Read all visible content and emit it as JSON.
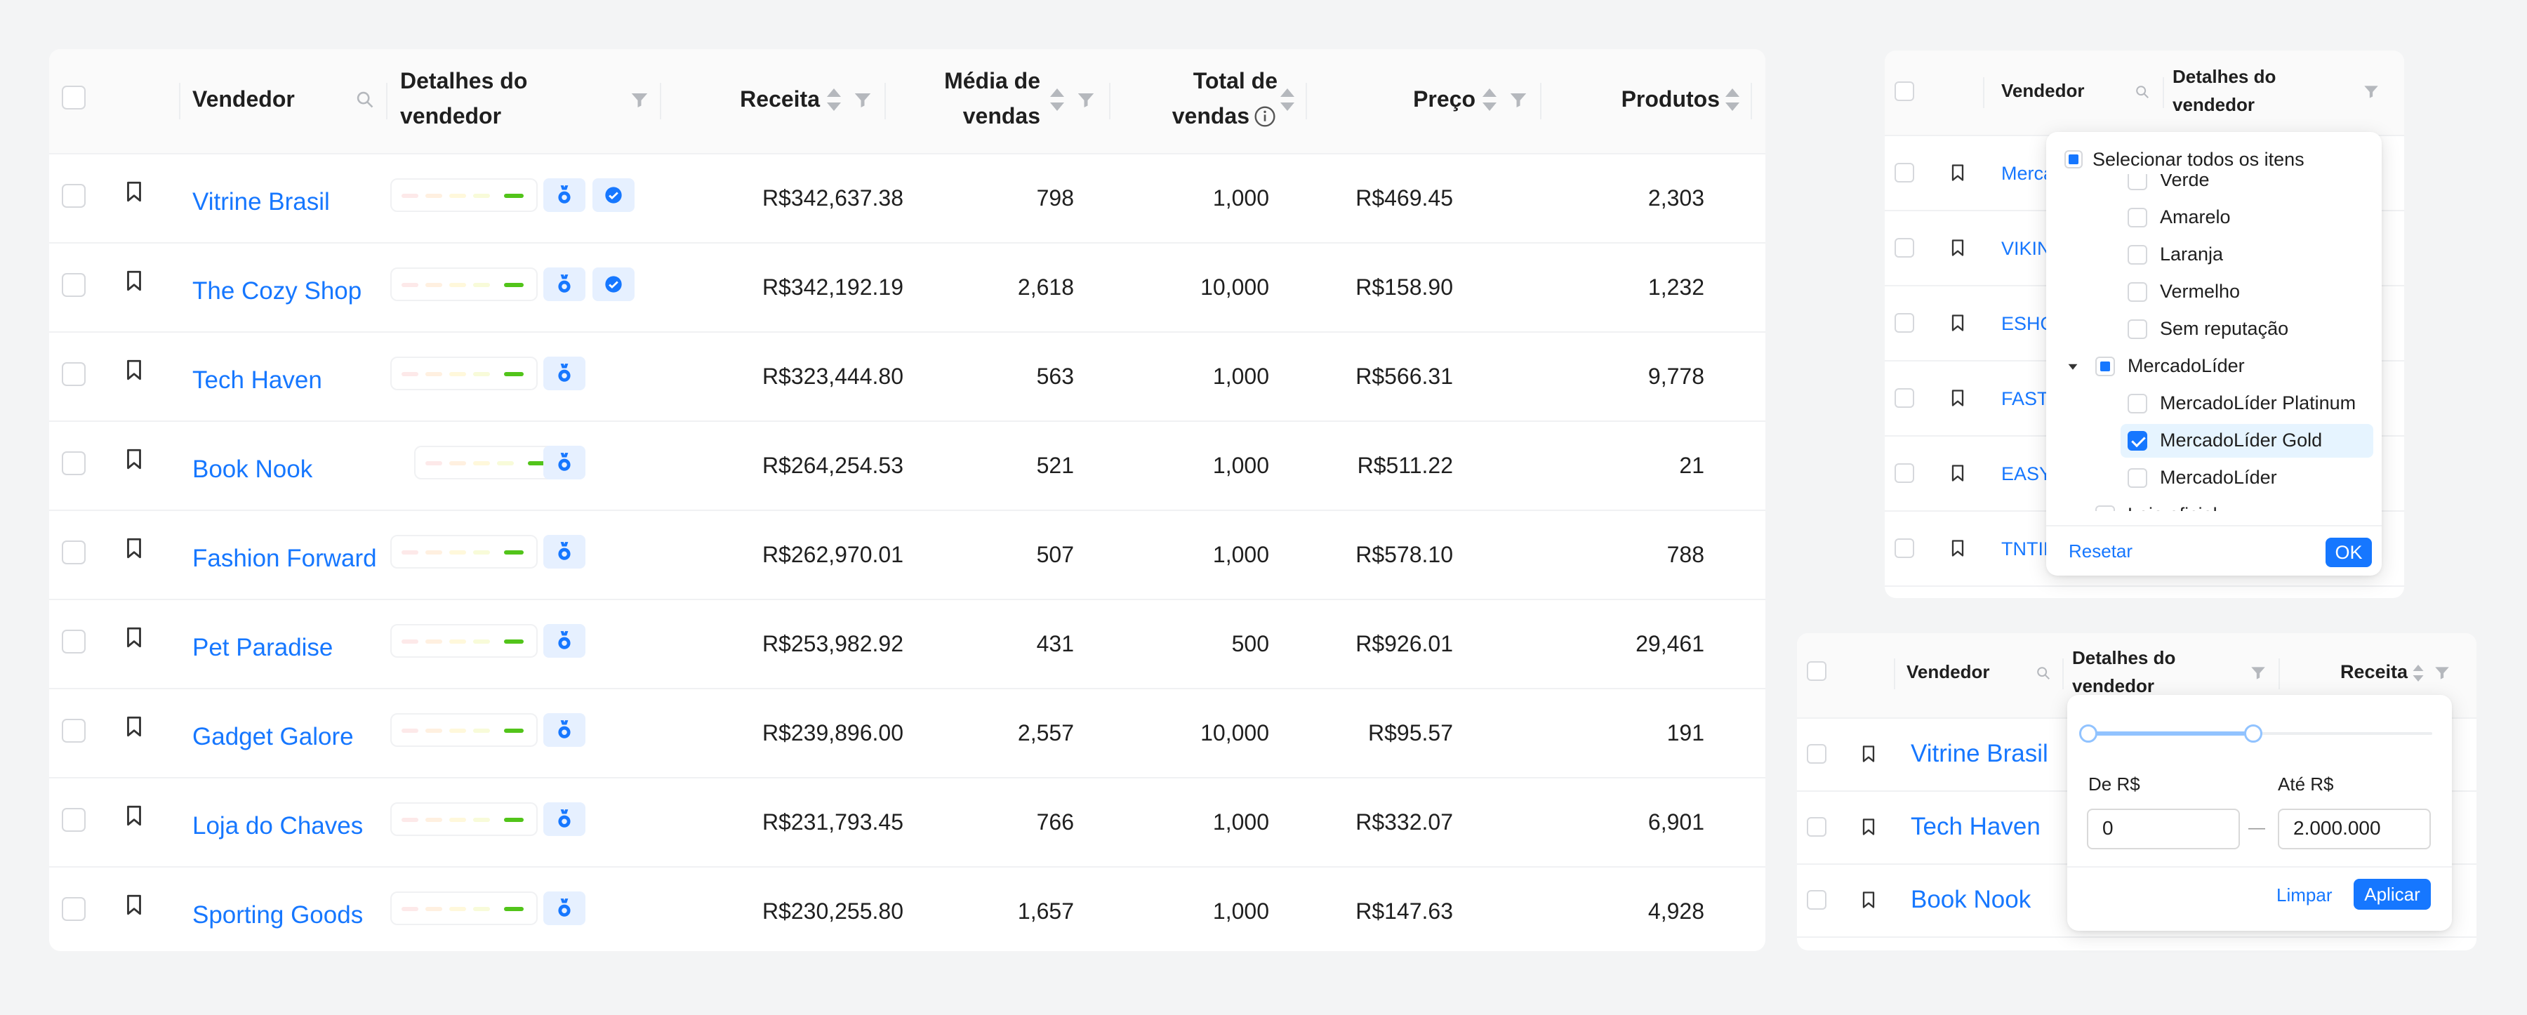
{
  "main_table": {
    "headers": {
      "vendor": "Vendedor",
      "details_line1": "Detalhes do",
      "details_line2": "vendedor",
      "revenue": "Receita",
      "avg_line1": "Média de",
      "avg_line2": "vendas",
      "total_line1": "Total de",
      "total_line2": "vendas",
      "price": "Preço",
      "products": "Produtos"
    },
    "rows": [
      {
        "vendor": "Vitrine Brasil",
        "revenue": "R$342,637.38",
        "avg": "798",
        "total": "1,000",
        "price": "R$469.45",
        "products": "2,303",
        "verified": true
      },
      {
        "vendor": "The Cozy Shop",
        "revenue": "R$342,192.19",
        "avg": "2,618",
        "total": "10,000",
        "price": "R$158.90",
        "products": "1,232",
        "verified": true
      },
      {
        "vendor": "Tech Haven",
        "revenue": "R$323,444.80",
        "avg": "563",
        "total": "1,000",
        "price": "R$566.31",
        "products": "9,778",
        "verified": false
      },
      {
        "vendor": "Book Nook",
        "revenue": "R$264,254.53",
        "avg": "521",
        "total": "1,000",
        "price": "R$511.22",
        "products": "21",
        "verified": false
      },
      {
        "vendor": "Fashion Forward",
        "revenue": "R$262,970.01",
        "avg": "507",
        "total": "1,000",
        "price": "R$578.10",
        "products": "788",
        "verified": false
      },
      {
        "vendor": "Pet Paradise",
        "revenue": "R$253,982.92",
        "avg": "431",
        "total": "500",
        "price": "R$926.01",
        "products": "29,461",
        "verified": false
      },
      {
        "vendor": "Gadget Galore",
        "revenue": "R$239,896.00",
        "avg": "2,557",
        "total": "10,000",
        "price": "R$95.57",
        "products": "191",
        "verified": false
      },
      {
        "vendor": "Loja do Chaves",
        "revenue": "R$231,793.45",
        "avg": "766",
        "total": "1,000",
        "price": "R$332.07",
        "products": "6,901",
        "verified": false
      },
      {
        "vendor": "Sporting Goods",
        "revenue": "R$230,255.80",
        "avg": "1,657",
        "total": "1,000",
        "price": "R$147.63",
        "products": "4,928",
        "verified": false
      }
    ]
  },
  "filter_panel": {
    "headers": {
      "vendor": "Vendedor",
      "details_line1": "Detalhes do",
      "details_line2": "vendedor"
    },
    "rows": [
      "Merca",
      "VIKIN",
      "ESHO",
      "FAST",
      "EASY",
      "TNTIN"
    ],
    "dropdown": {
      "select_all": "Selecionar todos os itens",
      "items": [
        {
          "label": "Verde",
          "indent": 2,
          "checked": false,
          "cut": true
        },
        {
          "label": "Amarelo",
          "indent": 2,
          "checked": false
        },
        {
          "label": "Laranja",
          "indent": 2,
          "checked": false
        },
        {
          "label": "Vermelho",
          "indent": 2,
          "checked": false
        },
        {
          "label": "Sem reputação",
          "indent": 2,
          "checked": false
        },
        {
          "label": "MercadoLíder",
          "indent": 1,
          "partial": true,
          "expanded": true
        },
        {
          "label": "MercadoLíder Platinum",
          "indent": 2,
          "checked": false
        },
        {
          "label": "MercadoLíder Gold",
          "indent": 2,
          "checked": true,
          "highlight": true
        },
        {
          "label": "MercadoLíder",
          "indent": 2,
          "checked": false
        },
        {
          "label": "Loja oficial",
          "indent": 1,
          "checked": false
        }
      ],
      "reset_label": "Resetar",
      "ok_label": "OK"
    }
  },
  "range_panel": {
    "headers": {
      "vendor": "Vendedor",
      "details_line1": "Detalhes do",
      "details_line2": "vendedor",
      "revenue": "Receita"
    },
    "rows": [
      "Vitrine Brasil",
      "Tech Haven",
      "Book Nook"
    ],
    "popup": {
      "from_label": "De R$",
      "to_label": "Até R$",
      "from_value": "0",
      "to_value": "2.000.000",
      "separator": "—",
      "slider_start_fraction": 0,
      "slider_end_fraction": 0.48,
      "clear_label": "Limpar",
      "apply_label": "Aplicar"
    }
  },
  "colors": {
    "primary": "#1677ff",
    "link": "#1677ff",
    "reputation_green": "#52c41a"
  }
}
